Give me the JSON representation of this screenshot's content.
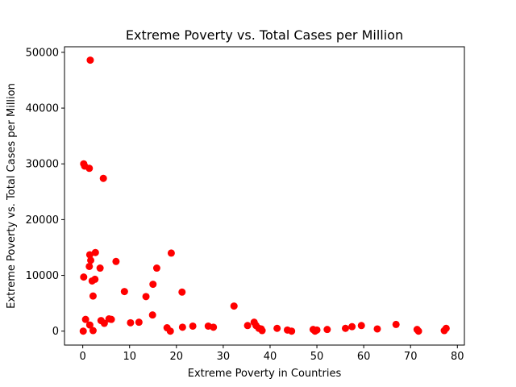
{
  "chart_data": {
    "type": "scatter",
    "title": "Extreme Poverty vs. Total Cases per Million",
    "xlabel": "Extreme Poverty in Countries",
    "ylabel": "Extreme Poverty vs. Total Cases per Million",
    "xlim": [
      -3.9,
      81.5
    ],
    "ylim": [
      -2500,
      51000
    ],
    "xticks": [
      0,
      10,
      20,
      30,
      40,
      50,
      60,
      70,
      80
    ],
    "yticks": [
      0,
      10000,
      20000,
      30000,
      40000,
      50000
    ],
    "grid": false,
    "legend": "none",
    "marker_color": "#ff0000",
    "series": [
      {
        "x": [
          1.6,
          0.2,
          0.4,
          1.4,
          4.4,
          2.7,
          1.5,
          1.7,
          3.7,
          1.4,
          2.0,
          2.6,
          0.2,
          2.2,
          0.6,
          1.5,
          2.2,
          0.1,
          5.6,
          6.1,
          3.9,
          4.6,
          7.1,
          8.9,
          13.5,
          15.0,
          15.8,
          18.9,
          21.2,
          10.2,
          12.0,
          14.9,
          18.0,
          18.7,
          21.3,
          23.5,
          26.8,
          27.9,
          32.3,
          35.2,
          36.6,
          37.0,
          37.6,
          38.1,
          38.3,
          41.5,
          43.7,
          44.6,
          49.2,
          49.6,
          50.0,
          52.2,
          56.1,
          57.5,
          59.5,
          62.9,
          66.9,
          71.4,
          71.7,
          77.2,
          77.6
        ],
        "y": [
          48600,
          30000,
          29600,
          29200,
          27400,
          14100,
          13700,
          12700,
          11300,
          11600,
          9000,
          9300,
          9700,
          6300,
          2100,
          1100,
          100,
          0,
          2200,
          2100,
          1900,
          1400,
          12500,
          7100,
          6200,
          8400,
          11300,
          14000,
          7000,
          1500,
          1600,
          2900,
          600,
          0,
          700,
          900,
          900,
          700,
          4500,
          1000,
          1600,
          1000,
          500,
          400,
          100,
          500,
          200,
          0,
          300,
          0,
          200,
          300,
          500,
          800,
          1000,
          400,
          1200,
          300,
          0,
          100,
          500
        ]
      }
    ]
  }
}
